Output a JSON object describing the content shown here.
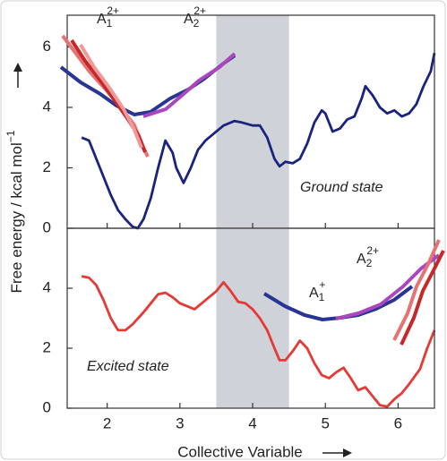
{
  "chart_data": [
    {
      "type": "line",
      "y_label": {
        "text": "Free energy / kcal mol",
        "sup": "−1"
      },
      "x": [
        1.65,
        1.75,
        1.85,
        1.95,
        2.05,
        2.15,
        2.25,
        2.35,
        2.42,
        2.5,
        2.6,
        2.7,
        2.8,
        2.9,
        2.95,
        3.05,
        3.15,
        3.25,
        3.35,
        3.45,
        3.6,
        3.75,
        3.85,
        4.0,
        4.1,
        4.2,
        4.3,
        4.37,
        4.45,
        4.55,
        4.65,
        4.75,
        4.85,
        4.95,
        5.0,
        5.1,
        5.2,
        5.3,
        5.4,
        5.5,
        5.55,
        5.65,
        5.75,
        5.85,
        5.95,
        6.05,
        6.15,
        6.25,
        6.35,
        6.45,
        6.5
      ],
      "series": [
        {
          "name": "Ground state",
          "color": "#1a237e",
          "values": [
            3.0,
            2.9,
            2.3,
            1.7,
            1.1,
            0.6,
            0.3,
            0.05,
            0.0,
            0.3,
            1.0,
            2.0,
            2.9,
            2.5,
            2.0,
            1.5,
            2.0,
            2.6,
            2.9,
            3.1,
            3.4,
            3.55,
            3.5,
            3.4,
            3.4,
            3.0,
            2.3,
            2.05,
            2.2,
            2.15,
            2.3,
            2.8,
            3.5,
            3.9,
            3.8,
            3.2,
            3.3,
            3.6,
            3.7,
            4.3,
            4.7,
            4.4,
            4.0,
            3.8,
            3.9,
            3.7,
            3.8,
            4.1,
            4.7,
            5.2,
            5.8
          ]
        }
      ],
      "xlim": [
        1.45,
        6.5
      ],
      "xticks": [
        2,
        3,
        4,
        5,
        6
      ],
      "ylim": [
        0,
        7.05
      ],
      "yticks": [
        0,
        2,
        4,
        6
      ],
      "shade": [
        3.5,
        4.5
      ],
      "shade_color": "#cfd3d9",
      "annotations": [
        {
          "text": "Ground state"
        },
        {
          "text": "A",
          "sub": "1",
          "sup": "2+"
        },
        {
          "text": "A",
          "sub": "2",
          "sup": "2+"
        }
      ]
    },
    {
      "type": "line",
      "x_label": "Collective Variable",
      "x": [
        1.65,
        1.75,
        1.85,
        1.95,
        2.05,
        2.15,
        2.25,
        2.35,
        2.5,
        2.6,
        2.7,
        2.8,
        2.9,
        3.0,
        3.1,
        3.2,
        3.3,
        3.4,
        3.5,
        3.6,
        3.7,
        3.8,
        3.9,
        4.0,
        4.1,
        4.2,
        4.3,
        4.37,
        4.45,
        4.55,
        4.65,
        4.75,
        4.85,
        4.95,
        5.05,
        5.15,
        5.25,
        5.35,
        5.45,
        5.55,
        5.65,
        5.75,
        5.85,
        5.95,
        6.05,
        6.15,
        6.3,
        6.4,
        6.5
      ],
      "series": [
        {
          "name": "Excited state",
          "color": "#e53935",
          "values": [
            4.4,
            4.35,
            4.1,
            3.6,
            3.0,
            2.6,
            2.6,
            2.8,
            3.2,
            3.5,
            3.8,
            3.85,
            3.7,
            3.5,
            3.4,
            3.3,
            3.5,
            3.7,
            3.9,
            4.2,
            3.9,
            3.55,
            3.5,
            3.3,
            3.0,
            2.6,
            2.0,
            1.6,
            1.6,
            1.9,
            2.25,
            2.0,
            1.5,
            1.1,
            1.0,
            1.2,
            1.35,
            1.0,
            0.6,
            0.7,
            0.4,
            0.1,
            0.05,
            0.3,
            0.5,
            0.8,
            1.3,
            2.0,
            2.6
          ]
        }
      ],
      "xlim": [
        1.45,
        6.5
      ],
      "xticks": [
        2,
        3,
        4,
        5,
        6
      ],
      "ylim": [
        0,
        6.0
      ],
      "yticks": [
        0,
        2,
        4
      ],
      "shade": [
        3.5,
        4.5
      ],
      "shade_color": "#cfd3d9",
      "annotations": [
        {
          "text": "Excited state"
        },
        {
          "text": "A",
          "sub": "1",
          "sup": "+"
        },
        {
          "text": "A",
          "sub": "2",
          "sup": "2+"
        }
      ]
    }
  ]
}
